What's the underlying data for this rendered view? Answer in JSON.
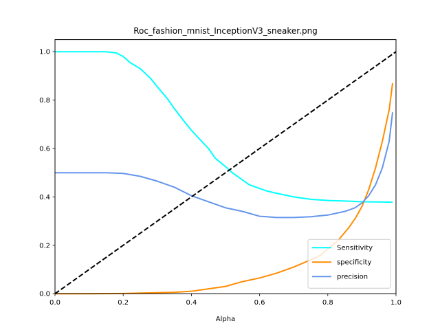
{
  "chart_data": {
    "type": "line",
    "title": "Roc_fashion_mnist_InceptionV3_sneaker.png",
    "xlabel": "Alpha",
    "ylabel": "",
    "xlim": [
      0.0,
      1.0
    ],
    "ylim": [
      0.0,
      1.05
    ],
    "xticks": [
      0.0,
      0.2,
      0.4,
      0.6,
      0.8,
      1.0
    ],
    "yticks": [
      0.0,
      0.2,
      0.4,
      0.6,
      0.8,
      1.0
    ],
    "xtick_labels": [
      "0.0",
      "0.2",
      "0.4",
      "0.6",
      "0.8",
      "1.0"
    ],
    "ytick_labels": [
      "0.0",
      "0.2",
      "0.4",
      "0.6",
      "0.8",
      "1.0"
    ],
    "grid": false,
    "legend_position": "lower-right",
    "series": [
      {
        "name": "Sensitivity",
        "color": "#00ffff",
        "dash": false,
        "x": [
          0.0,
          0.05,
          0.1,
          0.15,
          0.18,
          0.2,
          0.22,
          0.25,
          0.28,
          0.3,
          0.33,
          0.35,
          0.38,
          0.4,
          0.42,
          0.45,
          0.47,
          0.5,
          0.52,
          0.55,
          0.57,
          0.6,
          0.62,
          0.65,
          0.7,
          0.75,
          0.8,
          0.85,
          0.9,
          0.95,
          0.99
        ],
        "y": [
          1.0,
          1.0,
          1.0,
          1.0,
          0.995,
          0.98,
          0.955,
          0.93,
          0.89,
          0.855,
          0.805,
          0.765,
          0.71,
          0.675,
          0.645,
          0.6,
          0.56,
          0.525,
          0.5,
          0.47,
          0.45,
          0.435,
          0.425,
          0.415,
          0.4,
          0.39,
          0.385,
          0.383,
          0.38,
          0.379,
          0.378
        ]
      },
      {
        "name": "specificity",
        "color": "#ff8c00",
        "dash": false,
        "x": [
          0.0,
          0.1,
          0.2,
          0.3,
          0.35,
          0.4,
          0.45,
          0.5,
          0.55,
          0.6,
          0.65,
          0.7,
          0.75,
          0.78,
          0.8,
          0.83,
          0.86,
          0.88,
          0.9,
          0.92,
          0.94,
          0.96,
          0.98,
          0.99
        ],
        "y": [
          0.0,
          0.0,
          0.001,
          0.004,
          0.006,
          0.01,
          0.02,
          0.03,
          0.05,
          0.065,
          0.085,
          0.11,
          0.14,
          0.16,
          0.185,
          0.22,
          0.27,
          0.31,
          0.36,
          0.43,
          0.52,
          0.63,
          0.76,
          0.87
        ]
      },
      {
        "name": "precision",
        "color": "#6495ed",
        "dash": false,
        "x": [
          0.0,
          0.05,
          0.1,
          0.15,
          0.2,
          0.25,
          0.3,
          0.35,
          0.4,
          0.45,
          0.5,
          0.55,
          0.6,
          0.65,
          0.7,
          0.75,
          0.8,
          0.85,
          0.88,
          0.9,
          0.92,
          0.94,
          0.96,
          0.98,
          0.99
        ],
        "y": [
          0.5,
          0.5,
          0.5,
          0.5,
          0.497,
          0.485,
          0.465,
          0.44,
          0.405,
          0.38,
          0.355,
          0.34,
          0.32,
          0.315,
          0.315,
          0.318,
          0.325,
          0.34,
          0.355,
          0.375,
          0.405,
          0.45,
          0.52,
          0.63,
          0.75
        ]
      },
      {
        "name": "",
        "color": "#000000",
        "dash": true,
        "x": [
          0.0,
          1.0
        ],
        "y": [
          0.0,
          1.0
        ]
      }
    ]
  }
}
